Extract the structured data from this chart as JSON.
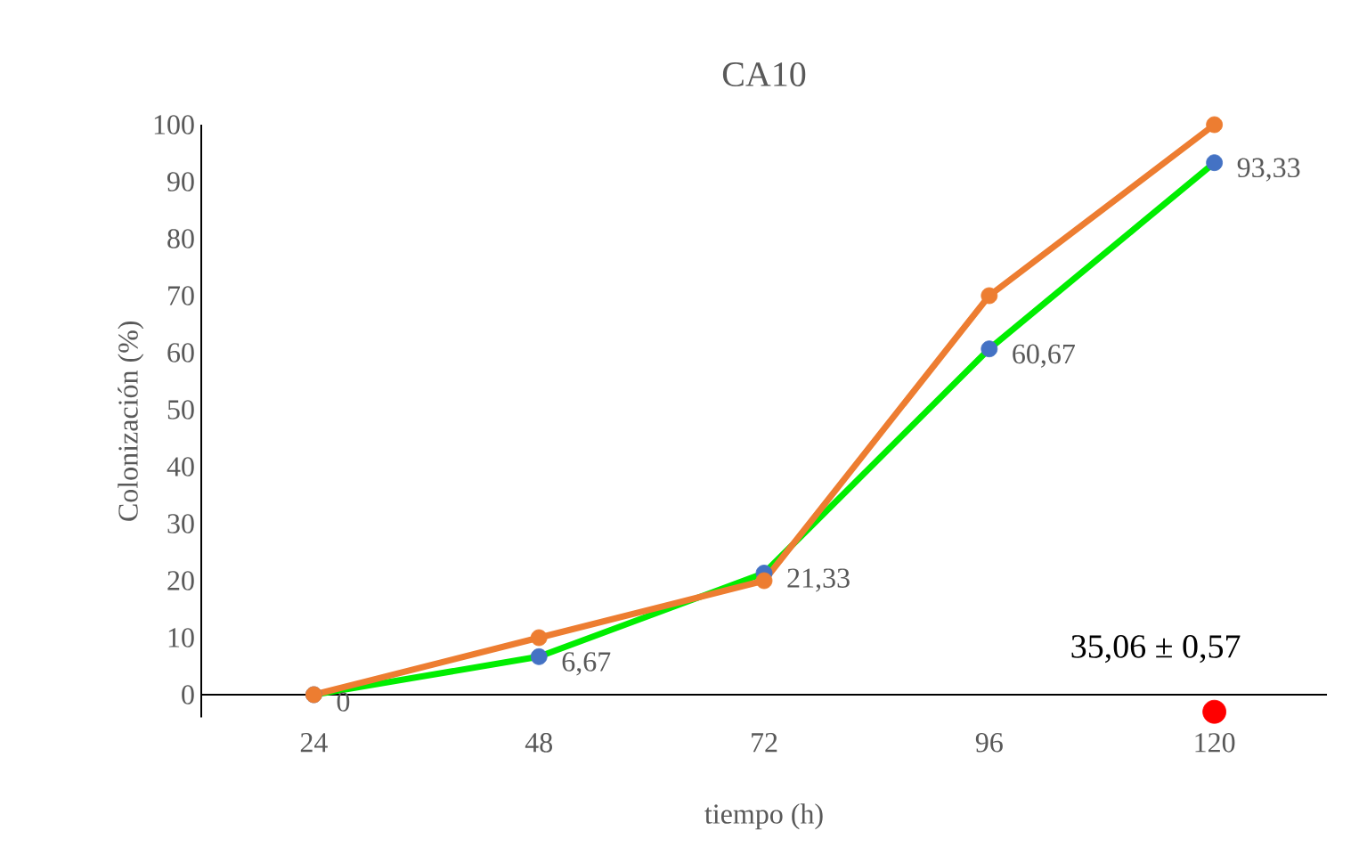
{
  "chart_data": {
    "type": "line",
    "title": "CA10",
    "xlabel": "tiempo (h)",
    "ylabel": "Colonización (%)",
    "categories": [
      "24",
      "48",
      "72",
      "96",
      "120"
    ],
    "ylim": [
      -4,
      100
    ],
    "yticks": [
      0,
      10,
      20,
      30,
      40,
      50,
      60,
      70,
      80,
      90,
      100
    ],
    "marker": "circle",
    "grid": false,
    "series": [
      {
        "color": "#00ee00",
        "colors": [
          "#4472c4",
          "#4472c4",
          "#4472c4",
          "#4472c4",
          "#4472c4"
        ],
        "values": [
          0,
          6.67,
          21.33,
          60.67,
          93.33
        ],
        "value_labels": [
          "0",
          "6,67",
          "21,33",
          "60,67",
          "93,33"
        ]
      },
      {
        "color": "#ed7d31",
        "values": [
          0,
          10,
          20,
          70,
          100
        ]
      },
      {
        "type": "scatter",
        "color": "#ff0000",
        "x": [
          "120"
        ],
        "values": [
          -3
        ]
      }
    ],
    "annotations": [
      {
        "text": "35,06 ± 0,57",
        "x": "120",
        "y": -3
      }
    ]
  }
}
